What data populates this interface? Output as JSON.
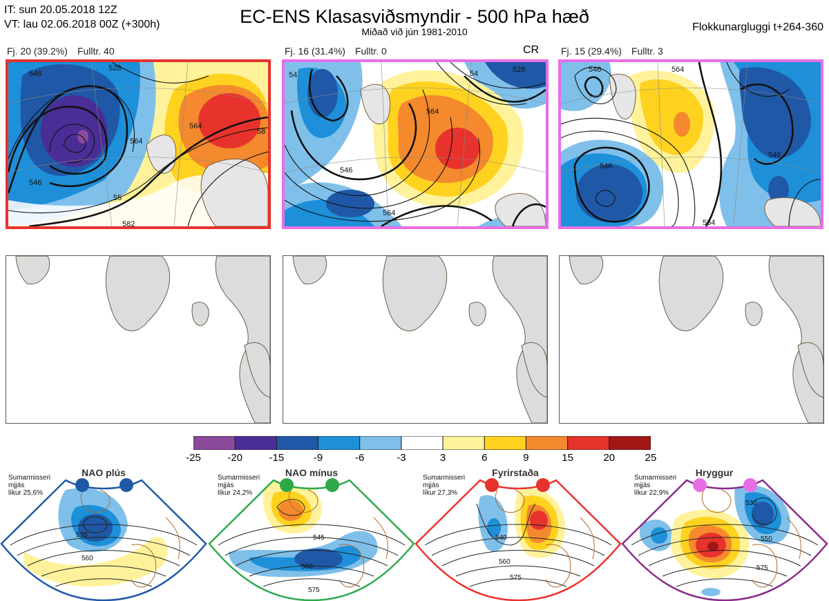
{
  "header": {
    "it_line": "IT: sun 20.05.2018 12Z",
    "vt_line": "VT: lau 02.06.2018 00Z  (+300h)",
    "title": "EC-ENS Klasasviðsmyndir - 500 hPa hæð",
    "subtitle": "Miðað við jún 1981-2010",
    "window": "Flokkunargluggi t+264-360"
  },
  "clusters": [
    {
      "count": "Fj. 20 (39.2%)",
      "control": "Fulltr. 40",
      "border_color": "#e8322c",
      "tag": ""
    },
    {
      "count": "Fj. 16 (31.4%)",
      "control": "Fulltr. 0",
      "border_color": "#e86ee8",
      "tag": "CR"
    },
    {
      "count": "Fj. 15 (29.4%)",
      "control": "Fulltr. 3",
      "border_color": "#e86ee8",
      "tag": ""
    }
  ],
  "contour_labels": {
    "p1": [
      "546",
      "546",
      "564",
      "564",
      "528",
      "58",
      "582",
      "55"
    ],
    "p2": [
      "546",
      "564",
      "528",
      "54",
      "564",
      "54"
    ],
    "p3": [
      "546",
      "546",
      "564",
      "564",
      "546"
    ]
  },
  "colorbar": {
    "ticks": [
      "-25",
      "-20",
      "-15",
      "-9",
      "-6",
      "-3",
      "3",
      "6",
      "9",
      "15",
      "20",
      "25"
    ],
    "colors": [
      "#8b4a9c",
      "#4b2d96",
      "#1f58a6",
      "#1e8fd9",
      "#7fc0ea",
      "#ffffff",
      "#fff29a",
      "#ffd21f",
      "#f4892d",
      "#e8322c",
      "#a31616"
    ]
  },
  "regimes": [
    {
      "title": "NAO plús",
      "note": [
        "Sumarmisseri",
        "mjjás",
        "líkur 25,6%"
      ],
      "frame_color": "#1f58a6",
      "dot_color": "#1f58a6",
      "labels": [
        "535",
        "560"
      ]
    },
    {
      "title": "NAO mínus",
      "note": [
        "Sumarmisseri",
        "mjjás",
        "líkur 24,2%"
      ],
      "frame_color": "#2fa84a",
      "dot_color": "#2fa84a",
      "labels": [
        "545",
        "560",
        "575"
      ]
    },
    {
      "title": "Fyrirstaða",
      "note": [
        "Sumarmisseri",
        "mjjás",
        "líkur 27,3%"
      ],
      "frame_color": "#e8322c",
      "dot_color": "#e8322c",
      "labels": [
        "540",
        "560",
        "575"
      ]
    },
    {
      "title": "Hryggur",
      "note": [
        "Sumarmisseri",
        "mjjás",
        "líkur 22,9%"
      ],
      "frame_color": "#8a2a8a",
      "dot_color": "#e86ee8",
      "labels": [
        "530",
        "550",
        "575"
      ]
    }
  ]
}
